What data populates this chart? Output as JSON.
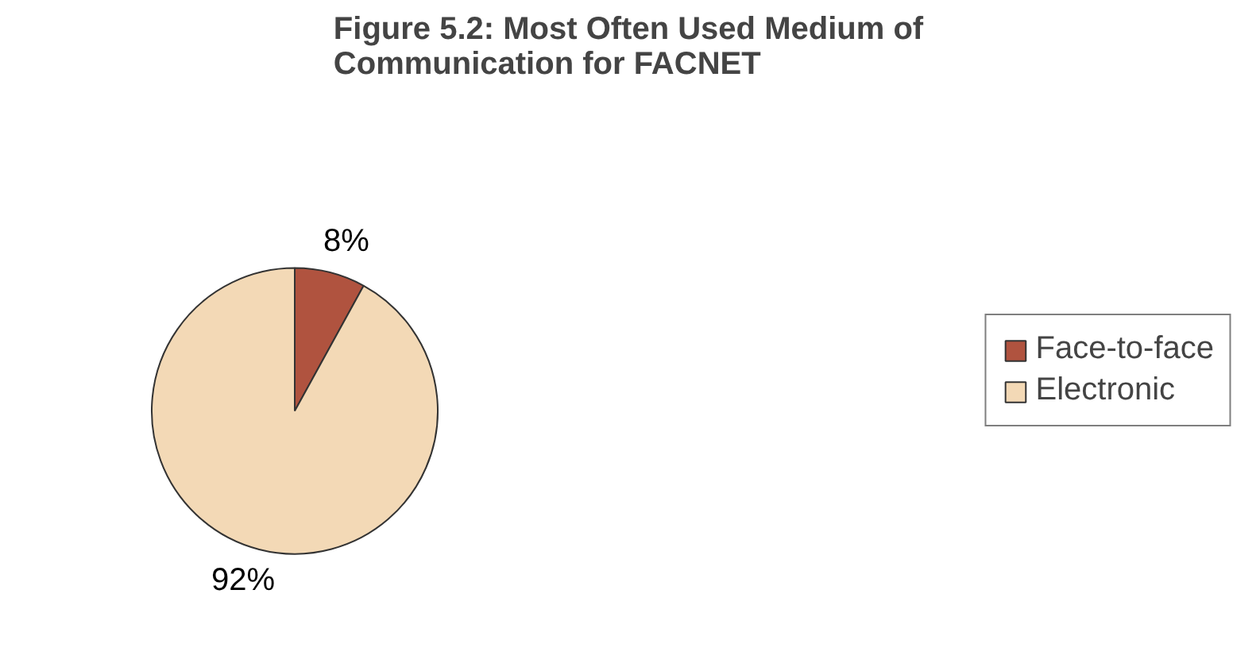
{
  "chart_data": {
    "type": "pie",
    "title": "Figure 5.2: Most Often Used Medium of\nCommunication for FACNET",
    "categories": [
      "Face-to-face",
      "Electronic"
    ],
    "values": [
      8,
      92
    ],
    "colors": [
      "#b0533f",
      "#f3d9b6"
    ],
    "value_labels": [
      "8%",
      "92%"
    ],
    "legend": "right"
  }
}
